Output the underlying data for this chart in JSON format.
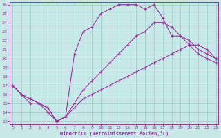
{
  "xlabel": "Windchill (Refroidissement éolien,°C)",
  "xlim": [
    -0.3,
    23.3
  ],
  "ylim": [
    12.7,
    26.3
  ],
  "xticks": [
    0,
    1,
    2,
    3,
    4,
    5,
    6,
    7,
    8,
    9,
    10,
    11,
    12,
    13,
    14,
    15,
    16,
    17,
    18,
    19,
    20,
    21,
    22,
    23
  ],
  "yticks": [
    13,
    14,
    15,
    16,
    17,
    18,
    19,
    20,
    21,
    22,
    23,
    24,
    25,
    26
  ],
  "bg_color": "#c8e8e8",
  "line_color": "#993399",
  "grid_color": "#99cccc",
  "line1_x": [
    0,
    1,
    2,
    3,
    4,
    5,
    6,
    7,
    8,
    9,
    10,
    11,
    12,
    13,
    14,
    15,
    16,
    17,
    18,
    19,
    20,
    21,
    22,
    23
  ],
  "line1_y": [
    17,
    16,
    15,
    15,
    14,
    13,
    13.5,
    20.5,
    23,
    23.5,
    25,
    25.5,
    26,
    26,
    26,
    25.5,
    26,
    24.5,
    22.5,
    22.5,
    21.5,
    20.5,
    20,
    19.5
  ],
  "line2_x": [
    0,
    1,
    2,
    3,
    4,
    5,
    6,
    7,
    8,
    9,
    10,
    11,
    12,
    13,
    14,
    15,
    16,
    17,
    18,
    19,
    20,
    21,
    22,
    23
  ],
  "line2_y": [
    17,
    16,
    15.5,
    15,
    14.5,
    13,
    13.5,
    15,
    16.5,
    17.5,
    18.5,
    19.5,
    20.5,
    21.5,
    22.5,
    23,
    24,
    24,
    23.5,
    22.5,
    22,
    21,
    20.5,
    20
  ],
  "line3_x": [
    0,
    1,
    2,
    3,
    4,
    5,
    6,
    7,
    8,
    9,
    10,
    11,
    12,
    13,
    14,
    15,
    16,
    17,
    18,
    19,
    20,
    21,
    22,
    23
  ],
  "line3_y": [
    17,
    16,
    15.5,
    15,
    14.5,
    13,
    13.5,
    14.5,
    15.5,
    16,
    16.5,
    17,
    17.5,
    18,
    18.5,
    19,
    19.5,
    20,
    20.5,
    21,
    21.5,
    21.5,
    21,
    20
  ]
}
